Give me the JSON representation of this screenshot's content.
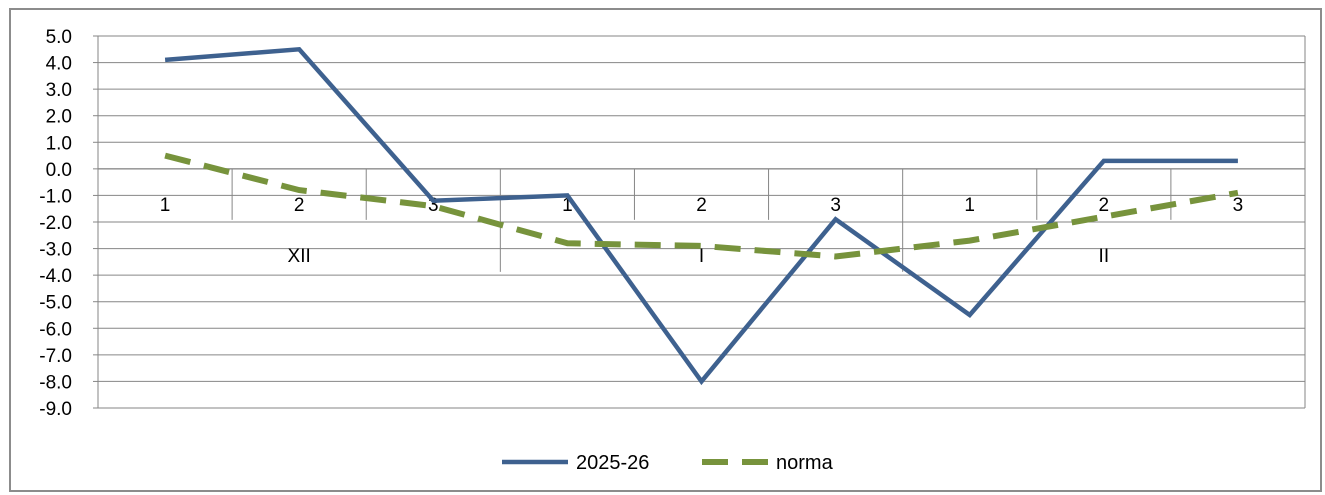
{
  "chart_data": {
    "type": "line",
    "categories": [
      {
        "dekad": "1",
        "month": "XII"
      },
      {
        "dekad": "2",
        "month": "XII"
      },
      {
        "dekad": "3",
        "month": "XII"
      },
      {
        "dekad": "1",
        "month": "I"
      },
      {
        "dekad": "2",
        "month": "I"
      },
      {
        "dekad": "3",
        "month": "I"
      },
      {
        "dekad": "1",
        "month": "II"
      },
      {
        "dekad": "2",
        "month": "II"
      },
      {
        "dekad": "3",
        "month": "II"
      }
    ],
    "month_groups": [
      "XII",
      "I",
      "II"
    ],
    "series": [
      {
        "name": "2025-26",
        "values": [
          4.1,
          4.5,
          -1.2,
          -1.0,
          -8.0,
          -1.9,
          -5.5,
          0.3,
          0.3
        ],
        "color": "#3e618f",
        "style": "solid"
      },
      {
        "name": "norma",
        "values": [
          0.5,
          -0.8,
          -1.4,
          -2.8,
          -2.9,
          -3.3,
          -2.7,
          -1.8,
          -0.9
        ],
        "color": "#77933c",
        "style": "dashed"
      }
    ],
    "ylim": [
      -9.0,
      5.0
    ],
    "ytick_labels": [
      "5.0",
      "4.0",
      "3.0",
      "2.0",
      "1.0",
      "0.0",
      "-1.0",
      "-2.0",
      "-3.0",
      "-4.0",
      "-5.0",
      "-6.0",
      "-7.0",
      "-8.0",
      "-9.0"
    ],
    "grid": true,
    "legend": "bottom",
    "title": "",
    "xlabel": "",
    "ylabel": ""
  }
}
